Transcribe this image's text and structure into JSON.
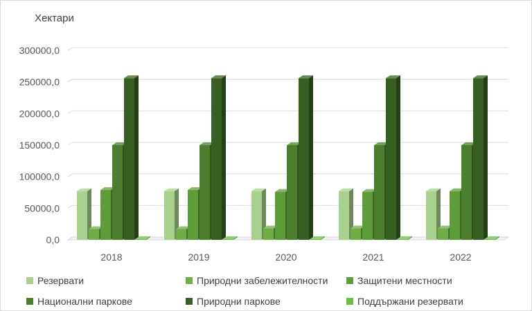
{
  "chart_data": {
    "type": "bar",
    "ylabel": "Хектари",
    "categories": [
      "2018",
      "2019",
      "2020",
      "2021",
      "2022"
    ],
    "ylim": [
      0,
      300000
    ],
    "yticks": [
      "0,0",
      "50000,0",
      "100000,0",
      "150000,0",
      "200000,0",
      "250000,0",
      "300000,0"
    ],
    "grid": true,
    "legend_position": "bottom",
    "series": [
      {
        "name": "Резервати",
        "color": "#a9d18e",
        "values": [
          77000,
          77000,
          77000,
          77000,
          77000
        ]
      },
      {
        "name": "Природни забележителности",
        "color": "#70ad47",
        "values": [
          17000,
          17000,
          18000,
          18000,
          18000
        ]
      },
      {
        "name": "Защитени местности",
        "color": "#5e9c3a",
        "values": [
          79000,
          79000,
          76000,
          76000,
          77000
        ]
      },
      {
        "name": "Национални паркове",
        "color": "#4c7e2e",
        "values": [
          150000,
          150000,
          150000,
          150000,
          150000
        ]
      },
      {
        "name": "Природни паркове",
        "color": "#375f22",
        "values": [
          256000,
          256000,
          256000,
          256000,
          256000
        ]
      },
      {
        "name": "Поддържани резервати",
        "color": "#6abf45",
        "values": [
          1200,
          1200,
          1200,
          1200,
          1200
        ]
      }
    ]
  }
}
